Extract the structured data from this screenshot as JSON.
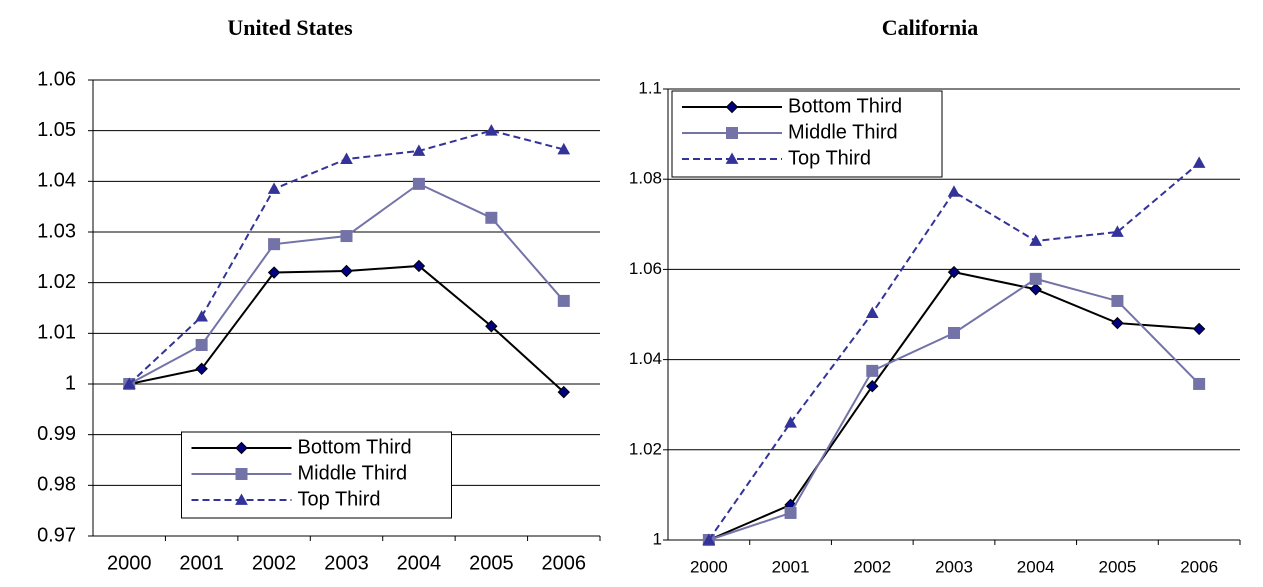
{
  "chart_data": [
    {
      "type": "line",
      "title": "United States",
      "categories": [
        "2000",
        "2001",
        "2002",
        "2003",
        "2004",
        "2005",
        "2006"
      ],
      "series": [
        {
          "name": "Bottom Third",
          "color": "#000000",
          "marker_color": "#000080",
          "marker": "diamond",
          "line_style": "solid",
          "values": [
            1.0,
            1.003,
            1.022,
            1.0223,
            1.0233,
            1.0114,
            0.9984
          ]
        },
        {
          "name": "Middle Third",
          "color": "#7373a8",
          "marker_color": "#7373a8",
          "marker": "square",
          "line_style": "solid",
          "values": [
            1.0,
            1.0077,
            1.0276,
            1.0292,
            1.0395,
            1.0328,
            1.0164
          ]
        },
        {
          "name": "Top Third",
          "color": "#333399",
          "marker_color": "#333399",
          "marker": "triangle",
          "line_style": "dashed",
          "values": [
            1.0,
            1.0133,
            1.0385,
            1.0444,
            1.046,
            1.05,
            1.0463
          ]
        }
      ],
      "ylim": [
        0.97,
        1.06
      ],
      "yticks": [
        0.97,
        0.98,
        0.99,
        1,
        1.01,
        1.02,
        1.03,
        1.04,
        1.05,
        1.06
      ],
      "grid": true,
      "legend": "lower center"
    },
    {
      "type": "line",
      "title": "California",
      "categories": [
        "2000",
        "2001",
        "2002",
        "2003",
        "2004",
        "2005",
        "2006"
      ],
      "series": [
        {
          "name": "Bottom Third",
          "color": "#000000",
          "marker_color": "#000080",
          "marker": "diamond",
          "line_style": "solid",
          "values": [
            1.0,
            1.0078,
            1.0341,
            1.0594,
            1.0556,
            1.0481,
            1.0468
          ]
        },
        {
          "name": "Middle Third",
          "color": "#7373a8",
          "marker_color": "#7373a8",
          "marker": "square",
          "line_style": "solid",
          "values": [
            1.0,
            1.006,
            1.0375,
            1.0459,
            1.0579,
            1.053,
            1.0346
          ]
        },
        {
          "name": "Top Third",
          "color": "#333399",
          "marker_color": "#333399",
          "marker": "triangle",
          "line_style": "dashed",
          "values": [
            1.0,
            1.026,
            1.0503,
            1.0772,
            1.0663,
            1.0683,
            1.0836
          ]
        }
      ],
      "ylim": [
        1,
        1.1
      ],
      "yticks": [
        1,
        1.02,
        1.04,
        1.06,
        1.08,
        1.1
      ],
      "grid": true,
      "legend": "upper left"
    }
  ]
}
